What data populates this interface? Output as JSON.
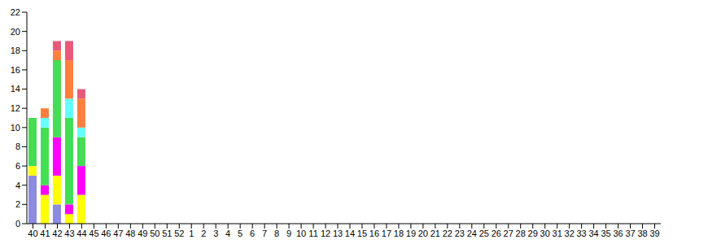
{
  "chart_data": {
    "type": "bar",
    "stacked": true,
    "grid": false,
    "categories": [
      "40",
      "41",
      "42",
      "43",
      "44",
      "45",
      "46",
      "47",
      "48",
      "49",
      "50",
      "51",
      "52",
      "1",
      "2",
      "3",
      "4",
      "5",
      "6",
      "7",
      "8",
      "9",
      "10",
      "11",
      "12",
      "13",
      "14",
      "15",
      "16",
      "17",
      "18",
      "19",
      "20",
      "21",
      "22",
      "23",
      "24",
      "25",
      "26",
      "27",
      "28",
      "29",
      "30",
      "31",
      "32",
      "33",
      "34",
      "35",
      "36",
      "37",
      "38",
      "39"
    ],
    "ylim": [
      0,
      22
    ],
    "yticks": [
      0,
      2,
      4,
      6,
      8,
      10,
      12,
      14,
      16,
      18,
      20,
      22
    ],
    "series": [
      {
        "color": "#8c8cdc",
        "values": [
          5,
          0,
          2,
          0,
          0,
          null,
          null,
          null,
          null,
          null,
          null,
          null,
          null,
          null,
          null,
          null,
          null,
          null,
          null,
          null,
          null,
          null,
          null,
          null,
          null,
          null,
          null,
          null,
          null,
          null,
          null,
          null,
          null,
          null,
          null,
          null,
          null,
          null,
          null,
          null,
          null,
          null,
          null,
          null,
          null,
          null,
          null,
          null,
          null,
          null,
          null,
          null
        ]
      },
      {
        "color": "#ffff00",
        "values": [
          1,
          3,
          3,
          1,
          3,
          null,
          null,
          null,
          null,
          null,
          null,
          null,
          null,
          null,
          null,
          null,
          null,
          null,
          null,
          null,
          null,
          null,
          null,
          null,
          null,
          null,
          null,
          null,
          null,
          null,
          null,
          null,
          null,
          null,
          null,
          null,
          null,
          null,
          null,
          null,
          null,
          null,
          null,
          null,
          null,
          null,
          null,
          null,
          null,
          null,
          null,
          null
        ]
      },
      {
        "color": "#ff00ff",
        "values": [
          0,
          1,
          4,
          1,
          3,
          null,
          null,
          null,
          null,
          null,
          null,
          null,
          null,
          null,
          null,
          null,
          null,
          null,
          null,
          null,
          null,
          null,
          null,
          null,
          null,
          null,
          null,
          null,
          null,
          null,
          null,
          null,
          null,
          null,
          null,
          null,
          null,
          null,
          null,
          null,
          null,
          null,
          null,
          null,
          null,
          null,
          null,
          null,
          null,
          null,
          null,
          null
        ]
      },
      {
        "color": "#44dd55",
        "values": [
          5,
          6,
          8,
          9,
          3,
          null,
          null,
          null,
          null,
          null,
          null,
          null,
          null,
          null,
          null,
          null,
          null,
          null,
          null,
          null,
          null,
          null,
          null,
          null,
          null,
          null,
          null,
          null,
          null,
          null,
          null,
          null,
          null,
          null,
          null,
          null,
          null,
          null,
          null,
          null,
          null,
          null,
          null,
          null,
          null,
          null,
          null,
          null,
          null,
          null,
          null,
          null
        ]
      },
      {
        "color": "#66ffff",
        "values": [
          0,
          1,
          0,
          2,
          1,
          null,
          null,
          null,
          null,
          null,
          null,
          null,
          null,
          null,
          null,
          null,
          null,
          null,
          null,
          null,
          null,
          null,
          null,
          null,
          null,
          null,
          null,
          null,
          null,
          null,
          null,
          null,
          null,
          null,
          null,
          null,
          null,
          null,
          null,
          null,
          null,
          null,
          null,
          null,
          null,
          null,
          null,
          null,
          null,
          null,
          null,
          null
        ]
      },
      {
        "color": "#ff7f3f",
        "values": [
          0,
          1,
          1,
          4,
          3,
          null,
          null,
          null,
          null,
          null,
          null,
          null,
          null,
          null,
          null,
          null,
          null,
          null,
          null,
          null,
          null,
          null,
          null,
          null,
          null,
          null,
          null,
          null,
          null,
          null,
          null,
          null,
          null,
          null,
          null,
          null,
          null,
          null,
          null,
          null,
          null,
          null,
          null,
          null,
          null,
          null,
          null,
          null,
          null,
          null,
          null,
          null
        ]
      },
      {
        "color": "#e85a7a",
        "values": [
          0,
          0,
          1,
          2,
          1,
          null,
          null,
          null,
          null,
          null,
          null,
          null,
          null,
          null,
          null,
          null,
          null,
          null,
          null,
          null,
          null,
          null,
          null,
          null,
          null,
          null,
          null,
          null,
          null,
          null,
          null,
          null,
          null,
          null,
          null,
          null,
          null,
          null,
          null,
          null,
          null,
          null,
          null,
          null,
          null,
          null,
          null,
          null,
          null,
          null,
          null,
          null
        ]
      }
    ]
  }
}
